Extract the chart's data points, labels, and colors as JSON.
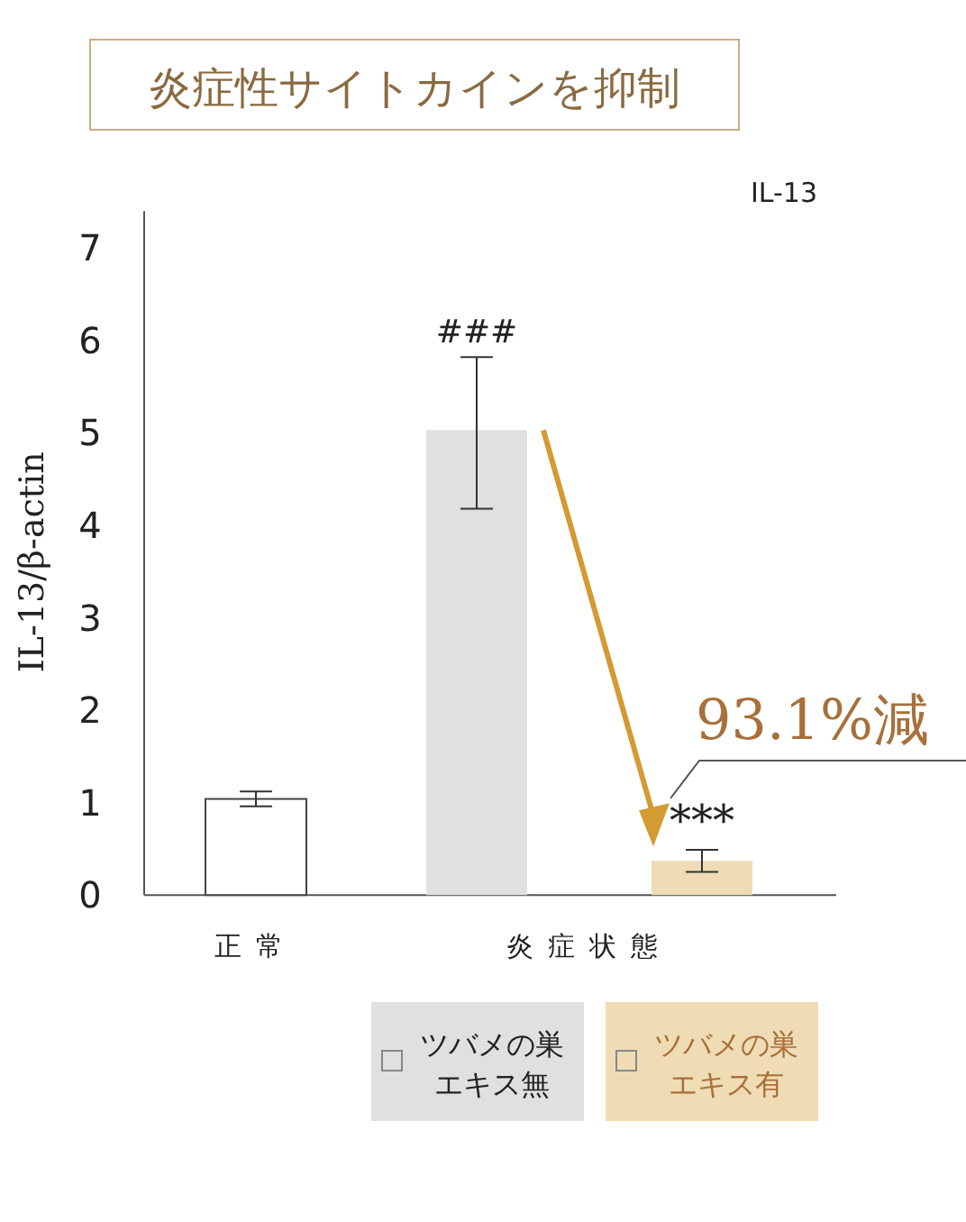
{
  "chart_data": {
    "type": "bar",
    "title": "炎症性サイトカインを抑制",
    "ylabel": "IL-13/β-actin",
    "categories": [
      "正常",
      "炎症状態"
    ],
    "series": [
      {
        "color": "#ffffff",
        "values": [
          1.04,
          null
        ],
        "errors": [
          [
            0.96,
            1.12
          ],
          null
        ]
      },
      {
        "name": "ツバメの巣エキス無",
        "color": "#e0e0e0",
        "values": [
          null,
          5.03
        ],
        "errors": [
          null,
          [
            4.18,
            5.82
          ]
        ]
      },
      {
        "name": "ツバメの巣エキス有",
        "color": "#efdcb4",
        "values": [
          null,
          0.37
        ],
        "errors": [
          null,
          [
            0.25,
            0.49
          ]
        ]
      }
    ],
    "ylim": [
      0,
      7.4
    ],
    "yticks": [
      0,
      1,
      2,
      3,
      4,
      5,
      6,
      7
    ],
    "annotations": [
      "###",
      "***",
      "93.1%減",
      "IL-13"
    ],
    "legend": "bottom",
    "grid": false
  }
}
